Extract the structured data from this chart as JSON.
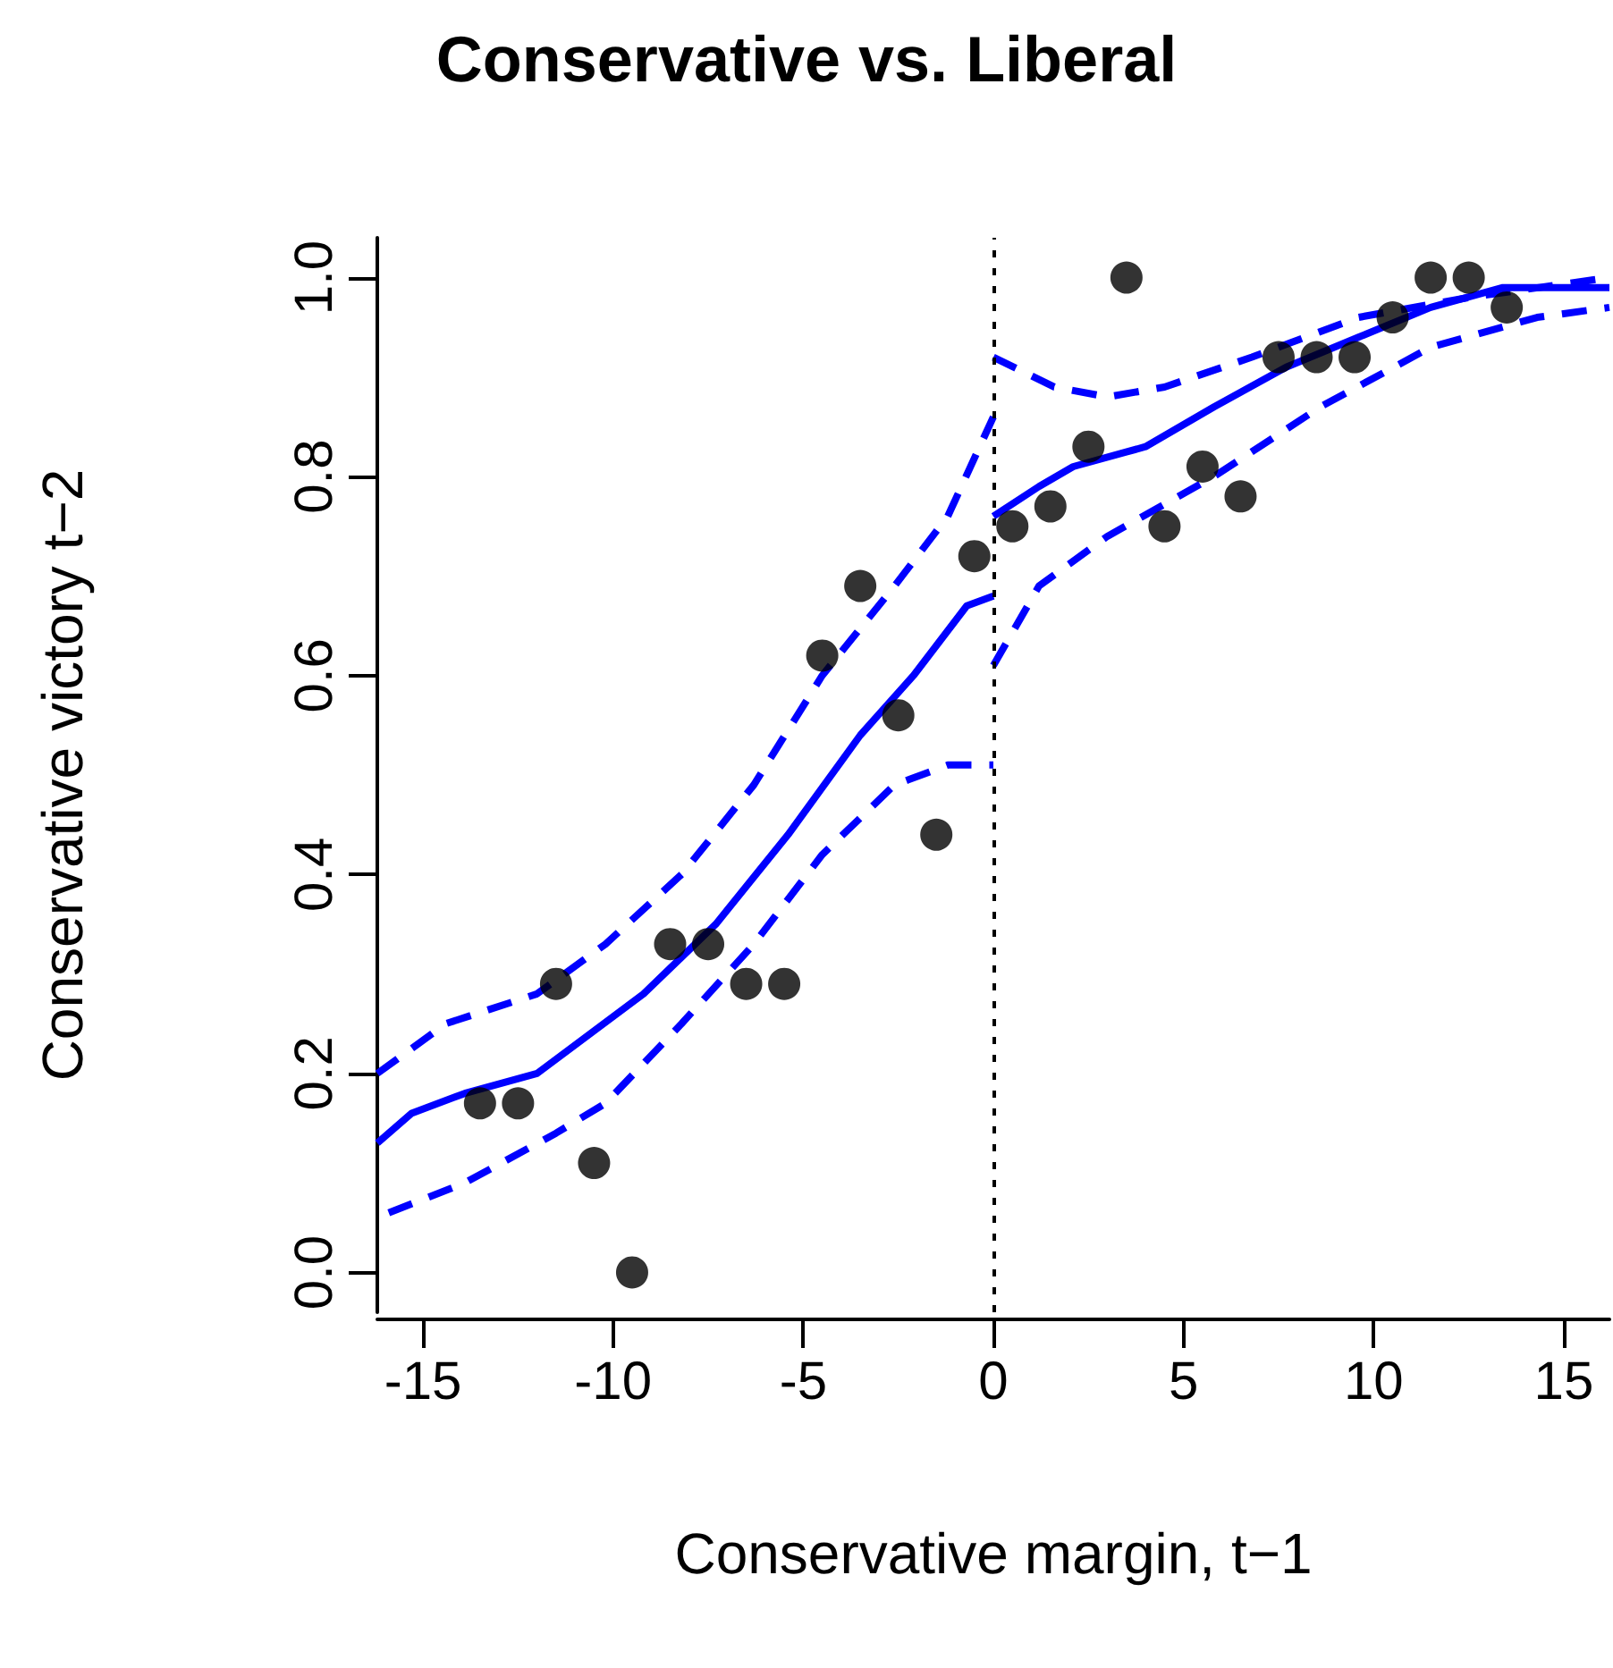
{
  "chart_data": {
    "type": "scatter",
    "title": "Conservative vs. Liberal",
    "xlabel": "Conservative margin, t−1",
    "ylabel": "Conservative victory t−2",
    "xlim": [
      -16.2,
      16.2
    ],
    "ylim": [
      -0.04,
      1.04
    ],
    "xticks": [
      -15,
      -10,
      -5,
      0,
      5,
      10,
      15
    ],
    "yticks": [
      {
        "value": 0,
        "label": "0.0"
      },
      {
        "value": 0.2,
        "label": "0.2"
      },
      {
        "value": 0.4,
        "label": "0.4"
      },
      {
        "value": 0.6,
        "label": "0.6"
      },
      {
        "value": 0.8,
        "label": "0.8"
      },
      {
        "value": 1,
        "label": "1.0"
      }
    ],
    "grid": false,
    "ref_lines": [
      {
        "axis": "x",
        "value": 0,
        "color": "#000000",
        "line_style": "dotted"
      }
    ],
    "series": [
      {
        "type": "scatter",
        "marker": "circle",
        "color": "#000000",
        "x": [
          -13.5,
          -12.5,
          -11.5,
          -10.5,
          -9.5,
          -8.5,
          -7.5,
          -6.5,
          -5.5,
          -4.5,
          -3.5,
          -2.5,
          -1.5,
          -0.5,
          0.5,
          1.5,
          2.5,
          3.5,
          4.5,
          5.5,
          6.5,
          7.5,
          8.5,
          9.5,
          10.5,
          11.5,
          12.5,
          13.5
        ],
        "values": [
          0.17,
          0.17,
          0.29,
          0.11,
          0.0,
          0.33,
          0.33,
          0.29,
          0.29,
          0.62,
          0.69,
          0.56,
          0.44,
          0.72,
          0.75,
          0.77,
          0.83,
          1.0,
          0.75,
          0.81,
          0.78,
          0.92,
          0.92,
          0.92,
          0.96,
          1.0,
          1.0,
          0.97
        ]
      },
      {
        "type": "line",
        "marker": "none",
        "line_style": "solid",
        "color": "#0000ff",
        "x": [
          -16.2,
          -15.3,
          -13.9,
          -12,
          -10.6,
          -9.2,
          -7.3,
          -5.4,
          -3.5,
          -2.1,
          -0.7,
          0
        ],
        "values": [
          0.13,
          0.16,
          0.18,
          0.2,
          0.24,
          0.28,
          0.35,
          0.44,
          0.54,
          0.6,
          0.67,
          0.68
        ]
      },
      {
        "type": "line",
        "marker": "none",
        "line_style": "dashed",
        "color": "#0000ff",
        "x": [
          -16.2,
          -14.4,
          -12,
          -10.2,
          -8.2,
          -6.3,
          -4.5,
          -2.6,
          -1.2,
          0
        ],
        "values": [
          0.2,
          0.25,
          0.28,
          0.33,
          0.4,
          0.49,
          0.6,
          0.69,
          0.76,
          0.86
        ]
      },
      {
        "type": "line",
        "marker": "none",
        "line_style": "dashed",
        "color": "#0000ff",
        "x": [
          -15.9,
          -13.9,
          -11.5,
          -10.2,
          -8.2,
          -6.3,
          -4.5,
          -2.6,
          -1.2,
          0
        ],
        "values": [
          0.06,
          0.09,
          0.14,
          0.17,
          0.25,
          0.33,
          0.42,
          0.49,
          0.51,
          0.51
        ]
      },
      {
        "type": "line",
        "marker": "none",
        "line_style": "solid",
        "color": "#0000ff",
        "x": [
          0,
          1.2,
          2.1,
          4,
          5.8,
          7.7,
          9.6,
          11.5,
          13.4,
          16.2
        ],
        "values": [
          0.76,
          0.79,
          0.81,
          0.83,
          0.87,
          0.91,
          0.94,
          0.97,
          0.99,
          0.99
        ]
      },
      {
        "type": "line",
        "marker": "none",
        "line_style": "dashed",
        "color": "#0000ff",
        "x": [
          0,
          1.6,
          3,
          4.5,
          6.8,
          9.6,
          12.5,
          16.2
        ],
        "values": [
          0.92,
          0.89,
          0.88,
          0.89,
          0.92,
          0.96,
          0.98,
          1.0
        ]
      },
      {
        "type": "line",
        "marker": "none",
        "line_style": "dashed",
        "color": "#0000ff",
        "x": [
          0,
          1.2,
          3,
          5.8,
          8.6,
          11.5,
          14.3,
          16.2
        ],
        "values": [
          0.61,
          0.69,
          0.74,
          0.8,
          0.87,
          0.93,
          0.96,
          0.97
        ]
      }
    ]
  }
}
